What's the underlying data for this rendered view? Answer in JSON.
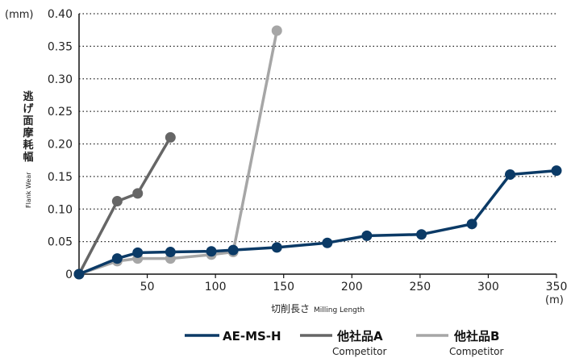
{
  "chart_data": {
    "type": "line",
    "title": "",
    "y_unit": "(mm)",
    "x_unit": "(m)",
    "ylabel_ja": "逃げ面摩耗幅",
    "ylabel_en": "Flank Wear",
    "xlabel_ja": "切削長さ",
    "xlabel_en": "Milling Length",
    "xlim": [
      0,
      350
    ],
    "ylim": [
      0,
      0.4
    ],
    "x_ticks": [
      50,
      100,
      150,
      200,
      250,
      300,
      350
    ],
    "y_ticks": [
      0,
      0.05,
      0.1,
      0.15,
      0.2,
      0.25,
      0.3,
      0.35,
      0.4
    ],
    "y_tick_labels": [
      "0",
      "0.05",
      "0.10",
      "0.15",
      "0.20",
      "0.25",
      "0.30",
      "0.35",
      "0.40"
    ],
    "grid": "horizontal dotted",
    "legend_position": "bottom",
    "series": [
      {
        "name": "AE-MS-H",
        "sub": "",
        "color": "#0b3a66",
        "marker": true,
        "x": [
          0,
          28,
          43,
          67,
          97,
          113,
          145,
          182,
          211,
          251,
          288,
          316,
          350
        ],
        "y": [
          0,
          0.024,
          0.033,
          0.034,
          0.035,
          0.037,
          0.041,
          0.048,
          0.059,
          0.061,
          0.077,
          0.153,
          0.159
        ]
      },
      {
        "name": "他社品A",
        "sub": "Competitor",
        "color": "#666666",
        "marker": true,
        "x": [
          0,
          28,
          43,
          67
        ],
        "y": [
          0,
          0.112,
          0.124,
          0.21
        ]
      },
      {
        "name": "他社品B",
        "sub": "Competitor",
        "color": "#a6a6a6",
        "marker": true,
        "x": [
          0,
          28,
          43,
          67,
          97,
          113,
          145
        ],
        "y": [
          0,
          0.02,
          0.024,
          0.024,
          0.03,
          0.034,
          0.374
        ]
      }
    ]
  }
}
